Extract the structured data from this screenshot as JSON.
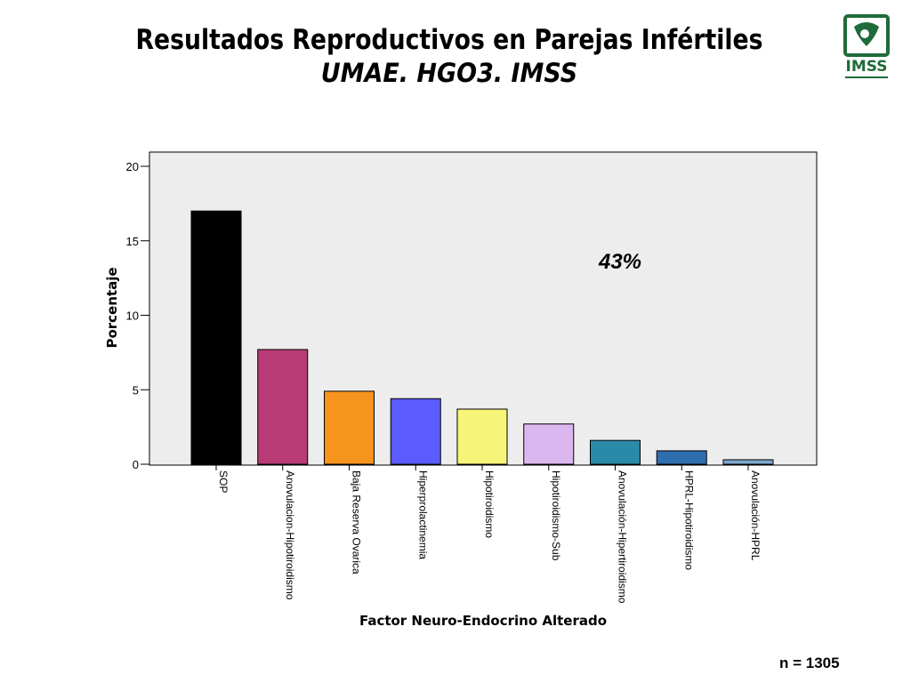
{
  "header": {
    "title": "Resultados Reproductivos en Parejas Infértiles",
    "subtitle": "UMAE. HGO3. IMSS"
  },
  "logo": {
    "text": "IMSS",
    "colors": {
      "brand": "#1f6b3a"
    }
  },
  "footer": {
    "sample_size": "n = 1305"
  },
  "chart_data": {
    "type": "bar",
    "title": "",
    "xlabel": "Factor Neuro-Endocrino Alterado",
    "ylabel": "Porcentaje",
    "ylim": [
      0,
      20
    ],
    "yticks": [
      0,
      5,
      10,
      15,
      20
    ],
    "grid": false,
    "plot_background": "#ededed",
    "annotation": "43%",
    "categories": [
      "SOP",
      "Anovulacion-Hipotiroidismo",
      "Baja Reserva Ovarica",
      "Hiperprolactinemia",
      "Hipotiroidismo",
      "Hipotiroidismo-Sub",
      "Anovulación-Hipertiroidismo",
      "HPRL-Hipotiroidismo",
      "Anovulación-HPRL"
    ],
    "values": [
      17.0,
      7.7,
      4.9,
      4.4,
      3.7,
      2.7,
      1.6,
      0.9,
      0.3
    ],
    "colors": [
      "#000000",
      "#b83b76",
      "#f7941d",
      "#5b5bff",
      "#f7f47a",
      "#dcb7ef",
      "#2b8aa8",
      "#2f6fb0",
      "#7fa8cf"
    ]
  }
}
